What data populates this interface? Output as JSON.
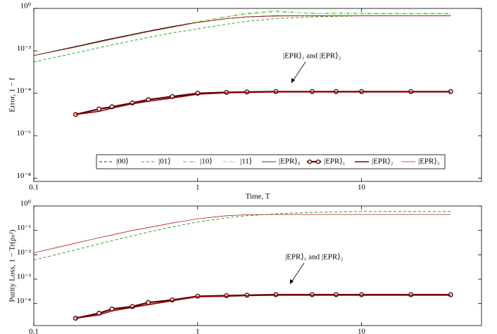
{
  "chart_data": [
    {
      "type": "line",
      "xlabel": "Time, T",
      "ylabel": "Error, 1 − f",
      "log_x": true,
      "log_y": true,
      "xlim": [
        0.1,
        54
      ],
      "xticks": [
        0.1,
        1,
        10
      ],
      "ylim": [
        7e-09,
        1
      ],
      "yticks": [
        {
          "value": 1,
          "label": "10⁰"
        },
        {
          "value": 0.01,
          "label": "10⁻²"
        },
        {
          "value": 0.0001,
          "label": "10⁻⁴"
        },
        {
          "value": 1e-06,
          "label": "10⁻⁶"
        },
        {
          "value": 1e-08,
          "label": "10⁻⁸"
        }
      ],
      "annotation": "|EPR⟩₁ and |EPR⟩₂",
      "legend": "lower center",
      "x": [
        0.1,
        0.18,
        0.25,
        0.3,
        0.4,
        0.5,
        0.7,
        1,
        1.5,
        2,
        3,
        5,
        7,
        10,
        20,
        35
      ],
      "series": [
        {
          "name": "|00⟩",
          "color": "#333333",
          "linestyle": "dashed",
          "values": [
            0.006,
            0.016,
            0.028,
            0.038,
            0.06,
            0.085,
            0.14,
            0.22,
            0.33,
            0.4,
            0.45,
            0.45,
            0.45,
            0.45,
            0.45,
            0.45
          ]
        },
        {
          "name": "|01⟩",
          "color": "#2ca02c",
          "linestyle": "dashed",
          "values": [
            0.003,
            0.008,
            0.014,
            0.019,
            0.03,
            0.043,
            0.07,
            0.11,
            0.18,
            0.25,
            0.33,
            0.4,
            0.43,
            0.45,
            0.45,
            0.45
          ]
        },
        {
          "name": "|10⟩",
          "color": "#44bb22",
          "linestyle": "dashdot",
          "values": [
            0.006,
            0.016,
            0.028,
            0.038,
            0.06,
            0.085,
            0.14,
            0.24,
            0.4,
            0.55,
            0.7,
            0.6,
            0.55,
            0.55,
            0.55,
            0.55
          ]
        },
        {
          "name": "|11⟩",
          "color": "#88dd44",
          "linestyle": "dashdot",
          "values": [
            0.006,
            0.016,
            0.028,
            0.038,
            0.06,
            0.085,
            0.14,
            0.24,
            0.42,
            0.6,
            0.8,
            0.55,
            0.65,
            0.6,
            0.6,
            0.6
          ]
        },
        {
          "name": "|EPR⟩₀",
          "color": "#000000",
          "linestyle": "solid",
          "width": 0.8,
          "values": [
            0.006,
            0.016,
            0.028,
            0.038,
            0.06,
            0.085,
            0.14,
            0.22,
            0.33,
            0.4,
            0.45,
            0.45,
            0.45,
            0.45,
            0.45,
            0.45
          ]
        },
        {
          "name": "|EPR⟩₁",
          "color": "#5a0000",
          "linestyle": "solid",
          "width": 2.2,
          "marker": "circle",
          "values": [
            null,
            1e-05,
            1.8e-05,
            2.3e-05,
            3.5e-05,
            5e-05,
            7e-05,
            0.0001,
            0.00011,
            0.000115,
            0.00012,
            0.00012,
            0.00012,
            0.00012,
            0.00012,
            0.00012
          ]
        },
        {
          "name": "|EPR⟩₂",
          "color": "#8b0000",
          "linestyle": "solid",
          "width": 1.6,
          "values": [
            null,
            1e-05,
            1.4e-05,
            2e-05,
            3.2e-05,
            4.2e-05,
            6e-05,
            9e-05,
            0.000105,
            0.00011,
            0.000115,
            0.000115,
            0.000115,
            0.000115,
            0.000115,
            0.000115
          ]
        },
        {
          "name": "|EPR⟩₃",
          "color": "#b22222",
          "linestyle": "solid",
          "width": 0.8,
          "values": [
            0.006,
            0.015,
            0.026,
            0.035,
            0.055,
            0.08,
            0.13,
            0.22,
            0.33,
            0.4,
            0.44,
            0.45,
            0.45,
            0.45,
            0.45,
            0.45
          ]
        }
      ]
    },
    {
      "type": "line",
      "ylabel": "Purity Loss, 1 − Tr(ρₛ²)",
      "log_x": true,
      "log_y": true,
      "xlim": [
        0.1,
        54
      ],
      "xticks": [
        0.1,
        1,
        10
      ],
      "ylim": [
        1.25e-05,
        1
      ],
      "yticks": [
        {
          "value": 1,
          "label": "10⁰"
        },
        {
          "value": 0.1,
          "label": "10⁻¹"
        },
        {
          "value": 0.01,
          "label": "10⁻²"
        },
        {
          "value": 0.001,
          "label": "10⁻³"
        },
        {
          "value": 0.0001,
          "label": "10⁻⁴"
        }
      ],
      "annotation": "|EPR⟩₁ and |EPR⟩₂",
      "x": [
        0.1,
        0.18,
        0.25,
        0.3,
        0.4,
        0.5,
        0.7,
        1,
        1.5,
        2,
        3,
        5,
        7,
        10,
        20,
        35
      ],
      "series": [
        {
          "color": "#2ca02c",
          "linestyle": "dashed",
          "values": [
            0.006,
            0.016,
            0.028,
            0.038,
            0.06,
            0.085,
            0.14,
            0.22,
            0.33,
            0.4,
            0.48,
            0.55,
            0.58,
            0.6,
            0.6,
            0.6
          ]
        },
        {
          "color": "#b22222",
          "linestyle": "solid",
          "width": 0.8,
          "values": [
            0.012,
            0.03,
            0.05,
            0.065,
            0.1,
            0.13,
            0.2,
            0.3,
            0.4,
            0.44,
            0.45,
            0.45,
            0.45,
            0.45,
            0.45,
            0.45
          ]
        },
        {
          "color": "#5a0000",
          "linestyle": "solid",
          "width": 2.2,
          "marker": "circle",
          "values": [
            null,
            2.5e-05,
            4e-05,
            6e-05,
            7.5e-05,
            0.00011,
            0.00014,
            0.0002,
            0.00021,
            0.00022,
            0.00023,
            0.00023,
            0.00023,
            0.00023,
            0.00023,
            0.00023
          ]
        },
        {
          "color": "#8b0000",
          "linestyle": "solid",
          "width": 1.6,
          "values": [
            null,
            2.5e-05,
            3.4e-05,
            5e-05,
            7e-05,
            9e-05,
            0.00013,
            0.00019,
            0.0002,
            0.00021,
            0.00022,
            0.00022,
            0.00022,
            0.00022,
            0.00022,
            0.00022
          ]
        }
      ]
    }
  ]
}
